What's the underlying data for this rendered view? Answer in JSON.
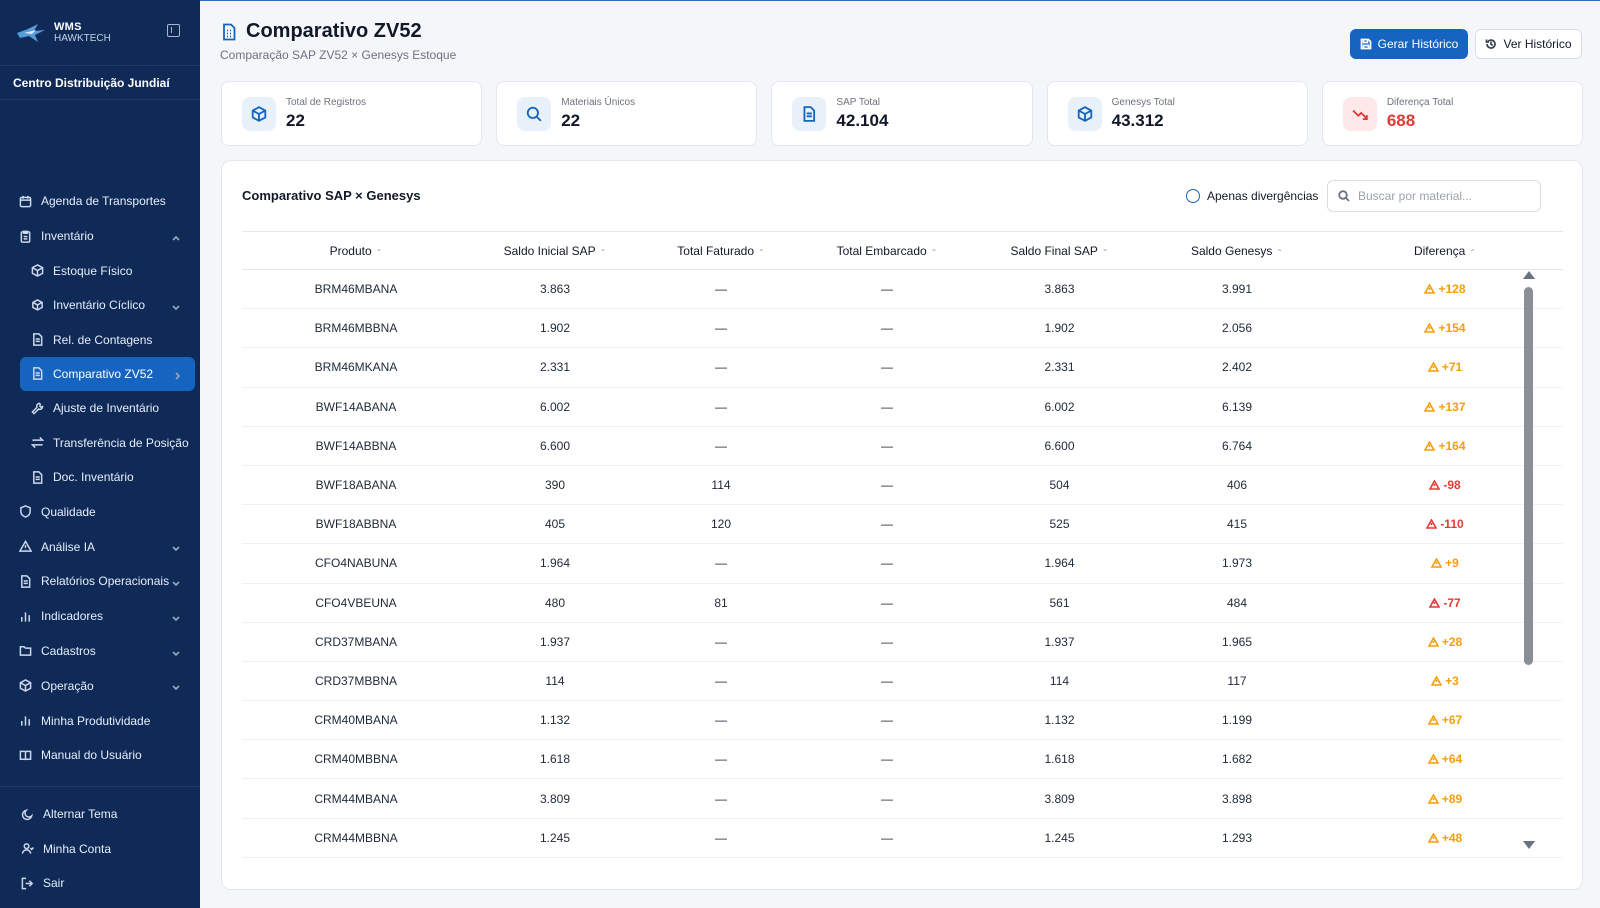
{
  "brand": {
    "title": "WMS",
    "subtitle": "HAWKTECH"
  },
  "center_name": "Centro Distribuição Jundiaí",
  "nav": [
    {
      "label": "Agenda de Transportes",
      "icon": "calendar-icon",
      "sub": false,
      "chevron": false
    },
    {
      "label": "Inventário",
      "icon": "clipboard-icon",
      "sub": false,
      "chevron": "up"
    },
    {
      "label": "Estoque Físico",
      "icon": "package-icon",
      "sub": true,
      "chevron": false
    },
    {
      "label": "Inventário Cíclico",
      "icon": "cycle-package-icon",
      "sub": true,
      "chevron": "down"
    },
    {
      "label": "Rel. de Contagens",
      "icon": "document-icon",
      "sub": true,
      "chevron": false
    },
    {
      "label": "Comparativo ZV52",
      "icon": "document-icon",
      "sub": true,
      "chevron": "right",
      "active": true
    },
    {
      "label": "Ajuste de Inventário",
      "icon": "wrench-icon",
      "sub": true,
      "chevron": false
    },
    {
      "label": "Transferência de Posição",
      "icon": "transfer-icon",
      "sub": true,
      "chevron": false
    },
    {
      "label": "Doc. Inventário",
      "icon": "document-icon",
      "sub": true,
      "chevron": false
    },
    {
      "label": "Qualidade",
      "icon": "shield-icon",
      "sub": false,
      "chevron": false
    },
    {
      "label": "Análise IA",
      "icon": "alert-triangle-icon",
      "sub": false,
      "chevron": "down"
    },
    {
      "label": "Relatórios Operacionais",
      "icon": "document-icon",
      "sub": false,
      "chevron": "down"
    },
    {
      "label": "Indicadores",
      "icon": "bar-chart-icon",
      "sub": false,
      "chevron": "down"
    },
    {
      "label": "Cadastros",
      "icon": "folder-icon",
      "sub": false,
      "chevron": "down"
    },
    {
      "label": "Operação",
      "icon": "package-icon",
      "sub": false,
      "chevron": "down"
    },
    {
      "label": "Minha Produtividade",
      "icon": "bar-chart-icon",
      "sub": false,
      "chevron": false
    },
    {
      "label": "Manual do Usuário",
      "icon": "book-icon",
      "sub": false,
      "chevron": false
    }
  ],
  "bottom_nav": [
    {
      "label": "Alternar Tema",
      "icon": "moon-icon"
    },
    {
      "label": "Minha Conta",
      "icon": "user-icon"
    },
    {
      "label": "Sair",
      "icon": "logout-icon"
    }
  ],
  "page": {
    "title": "Comparativo ZV52",
    "subtitle": "Comparação SAP ZV52 × Genesys Estoque",
    "btn_generate": "Gerar Histórico",
    "btn_view": "Ver Histórico"
  },
  "stats": [
    {
      "label": "Total de Registros",
      "value": "22",
      "icon": "package-icon"
    },
    {
      "label": "Materiais Únicos",
      "value": "22",
      "icon": "search-icon"
    },
    {
      "label": "SAP Total",
      "value": "42.104",
      "icon": "document-icon"
    },
    {
      "label": "Genesys Total",
      "value": "43.312",
      "icon": "package-icon"
    },
    {
      "label": "Diferença Total",
      "value": "688",
      "icon": "trending-down-icon",
      "alert": true
    }
  ],
  "table": {
    "title": "Comparativo SAP × Genesys",
    "toggle_label": "Apenas divergências",
    "search_placeholder": "Buscar por material...",
    "headers": [
      "Produto",
      "Saldo Inicial SAP",
      "Total Faturado",
      "Total Embarcado",
      "Saldo Final SAP",
      "Saldo Genesys",
      "Diferença"
    ],
    "rows": [
      [
        "BRM46MBANA",
        "3.863",
        "—",
        "—",
        "3.863",
        "3.991",
        "+128"
      ],
      [
        "BRM46MBBNA",
        "1.902",
        "—",
        "—",
        "1.902",
        "2.056",
        "+154"
      ],
      [
        "BRM46MKANA",
        "2.331",
        "—",
        "—",
        "2.331",
        "2.402",
        "+71"
      ],
      [
        "BWF14ABANA",
        "6.002",
        "—",
        "—",
        "6.002",
        "6.139",
        "+137"
      ],
      [
        "BWF14ABBNA",
        "6.600",
        "—",
        "—",
        "6.600",
        "6.764",
        "+164"
      ],
      [
        "BWF18ABANA",
        "390",
        "114",
        "—",
        "504",
        "406",
        "-98"
      ],
      [
        "BWF18ABBNA",
        "405",
        "120",
        "—",
        "525",
        "415",
        "-110"
      ],
      [
        "CFO4NABUNA",
        "1.964",
        "—",
        "—",
        "1.964",
        "1.973",
        "+9"
      ],
      [
        "CFO4VBEUNA",
        "480",
        "81",
        "—",
        "561",
        "484",
        "-77"
      ],
      [
        "CRD37MBANA",
        "1.937",
        "—",
        "—",
        "1.937",
        "1.965",
        "+28"
      ],
      [
        "CRD37MBBNA",
        "114",
        "—",
        "—",
        "114",
        "117",
        "+3"
      ],
      [
        "CRM40MBANA",
        "1.132",
        "—",
        "—",
        "1.132",
        "1.199",
        "+67"
      ],
      [
        "CRM40MBBNA",
        "1.618",
        "—",
        "—",
        "1.618",
        "1.682",
        "+64"
      ],
      [
        "CRM44MBANA",
        "3.809",
        "—",
        "—",
        "3.809",
        "3.898",
        "+89"
      ],
      [
        "CRM44MBBNA",
        "1.245",
        "—",
        "—",
        "1.245",
        "1.293",
        "+48"
      ]
    ]
  },
  "colors": {
    "sidebar": "#0f2a57",
    "accent": "#1565c0",
    "positive_diff": "#f59e0b",
    "negative_diff": "#e53935"
  }
}
